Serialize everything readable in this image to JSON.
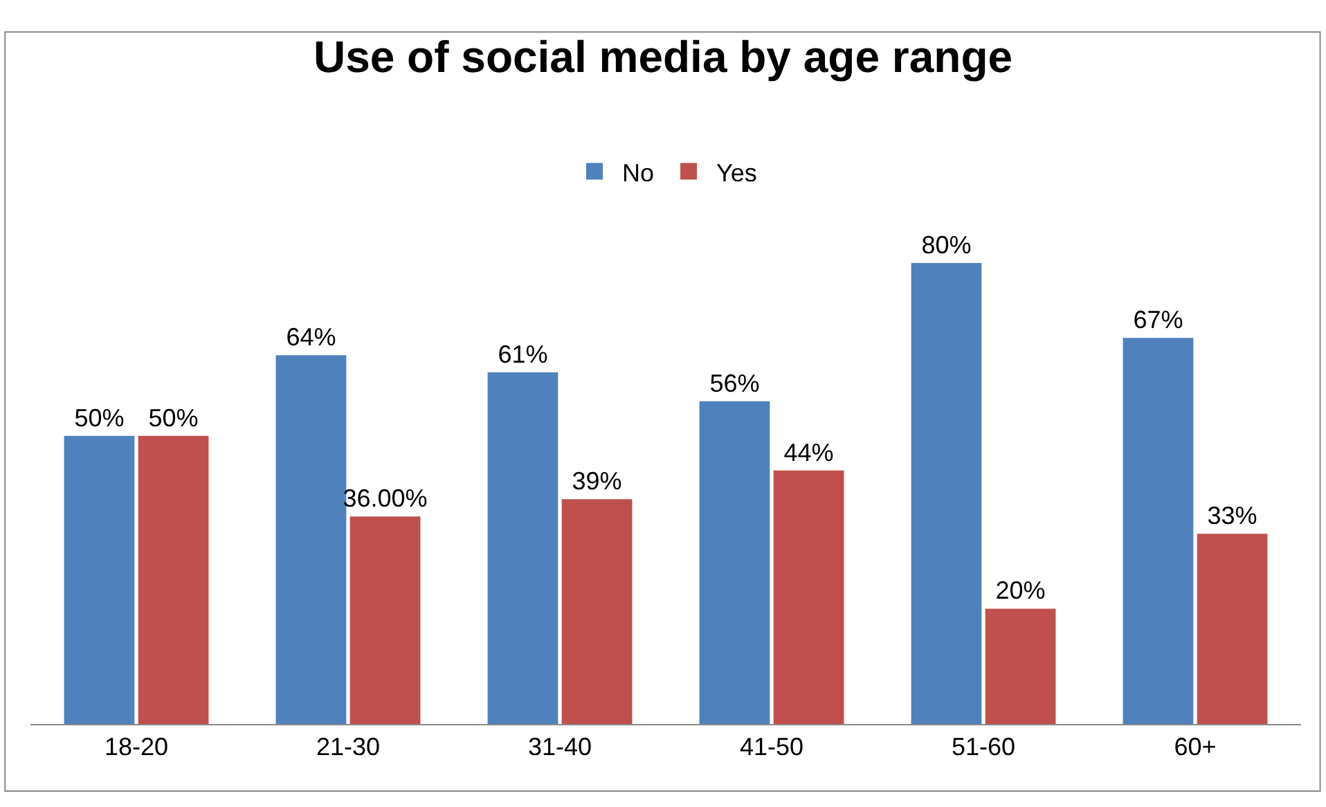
{
  "chart_data": {
    "type": "bar",
    "title": "Use of social media by age range",
    "categories": [
      "18-20",
      "21-30",
      "31-40",
      "41-50",
      "51-60",
      "60+"
    ],
    "series": [
      {
        "name": "No",
        "color": "#4f81bd",
        "values": [
          50,
          64,
          61,
          56,
          80,
          67
        ],
        "value_labels": [
          "50%",
          "64%",
          "61%",
          "56%",
          "80%",
          "67%"
        ]
      },
      {
        "name": "Yes",
        "color": "#c0504d",
        "values": [
          50,
          36,
          39,
          44,
          20,
          33
        ],
        "value_labels": [
          "50%",
          "36.00%",
          "39%",
          "44%",
          "20%",
          "33%"
        ]
      }
    ],
    "legend": "top"
  }
}
